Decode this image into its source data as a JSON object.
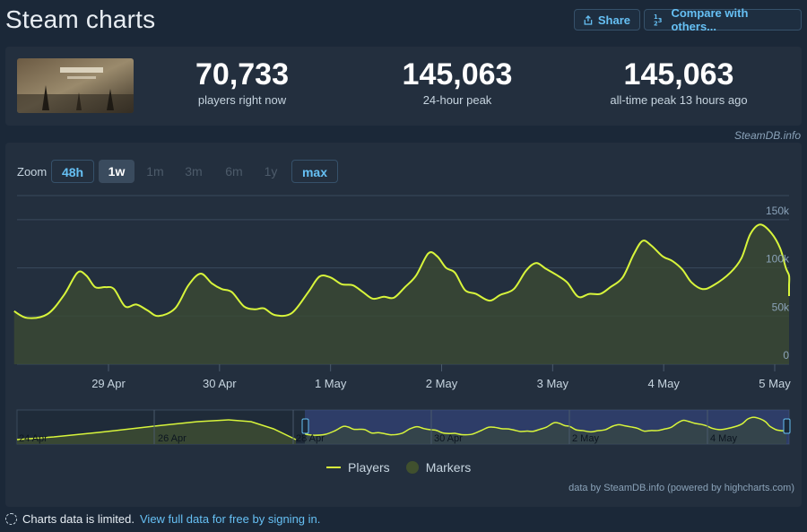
{
  "page": {
    "title": "Steam charts",
    "share_label": "Share",
    "compare_label": "Compare with others..."
  },
  "stats": [
    {
      "value": "70,733",
      "label": "players right now"
    },
    {
      "value": "145,063",
      "label": "24-hour peak"
    },
    {
      "value": "145,063",
      "label": "all-time peak 13 hours ago"
    }
  ],
  "credit_top": "SteamDB.info",
  "zoom": {
    "label": "Zoom",
    "options": [
      {
        "label": "48h",
        "state": "outline"
      },
      {
        "label": "1w",
        "state": "active"
      },
      {
        "label": "1m",
        "state": "disabled"
      },
      {
        "label": "3m",
        "state": "disabled"
      },
      {
        "label": "6m",
        "state": "disabled"
      },
      {
        "label": "1y",
        "state": "disabled"
      },
      {
        "label": "max",
        "state": "outline"
      }
    ]
  },
  "chart_data": {
    "type": "area",
    "title": "",
    "xlabel": "",
    "ylabel": "",
    "ylim": [
      0,
      175000
    ],
    "y_ticks": [
      {
        "value": 0,
        "label": "0"
      },
      {
        "value": 50000,
        "label": "50k"
      },
      {
        "value": 100000,
        "label": "100k"
      },
      {
        "value": 150000,
        "label": "150k"
      }
    ],
    "x_ticks": [
      "29 Apr",
      "30 Apr",
      "1 May",
      "2 May",
      "3 May",
      "4 May",
      "5 May"
    ],
    "x_unit": "days since first sample",
    "xlim": [
      0,
      6.98
    ],
    "grid": true,
    "color_line": "#d8f53b",
    "color_fill": "#3b4a33",
    "series": [
      {
        "name": "Players",
        "points": [
          [
            0.0,
            55000
          ],
          [
            0.12,
            48000
          ],
          [
            0.3,
            52000
          ],
          [
            0.45,
            72000
          ],
          [
            0.57,
            95000
          ],
          [
            0.65,
            92000
          ],
          [
            0.73,
            80000
          ],
          [
            0.82,
            80000
          ],
          [
            0.9,
            78000
          ],
          [
            1.0,
            60000
          ],
          [
            1.1,
            62000
          ],
          [
            1.2,
            56000
          ],
          [
            1.3,
            50000
          ],
          [
            1.45,
            58000
          ],
          [
            1.57,
            82000
          ],
          [
            1.68,
            94000
          ],
          [
            1.78,
            84000
          ],
          [
            1.87,
            78000
          ],
          [
            1.96,
            75000
          ],
          [
            2.07,
            60000
          ],
          [
            2.17,
            57000
          ],
          [
            2.25,
            58000
          ],
          [
            2.35,
            51000
          ],
          [
            2.5,
            53000
          ],
          [
            2.65,
            75000
          ],
          [
            2.75,
            91000
          ],
          [
            2.85,
            90000
          ],
          [
            2.95,
            83000
          ],
          [
            3.05,
            82000
          ],
          [
            3.14,
            75000
          ],
          [
            3.23,
            68000
          ],
          [
            3.33,
            70000
          ],
          [
            3.42,
            69000
          ],
          [
            3.52,
            80000
          ],
          [
            3.62,
            92000
          ],
          [
            3.73,
            115000
          ],
          [
            3.81,
            112000
          ],
          [
            3.89,
            100000
          ],
          [
            3.97,
            95000
          ],
          [
            4.06,
            77000
          ],
          [
            4.16,
            73000
          ],
          [
            4.28,
            66000
          ],
          [
            4.38,
            72000
          ],
          [
            4.5,
            78000
          ],
          [
            4.61,
            97000
          ],
          [
            4.7,
            105000
          ],
          [
            4.79,
            99000
          ],
          [
            4.88,
            93000
          ],
          [
            4.98,
            85000
          ],
          [
            5.08,
            70000
          ],
          [
            5.18,
            73000
          ],
          [
            5.28,
            73000
          ],
          [
            5.37,
            80000
          ],
          [
            5.48,
            90000
          ],
          [
            5.58,
            114000
          ],
          [
            5.66,
            128000
          ],
          [
            5.74,
            123000
          ],
          [
            5.84,
            112000
          ],
          [
            5.93,
            107000
          ],
          [
            6.02,
            98000
          ],
          [
            6.1,
            85000
          ],
          [
            6.2,
            78000
          ],
          [
            6.3,
            82000
          ],
          [
            6.45,
            95000
          ],
          [
            6.55,
            110000
          ],
          [
            6.63,
            135000
          ],
          [
            6.72,
            145000
          ],
          [
            6.82,
            136000
          ],
          [
            6.9,
            120000
          ],
          [
            6.95,
            100000
          ],
          [
            6.98,
            92000
          ],
          [
            7.03,
            82000
          ],
          [
            7.08,
            75000
          ],
          [
            7.15,
            72000
          ],
          [
            7.21,
            70733
          ]
        ]
      }
    ],
    "legend": [
      "Players",
      "Markers"
    ],
    "legend_position": "bottom-center"
  },
  "navigator": {
    "labels": [
      "24 Apr",
      "26 Apr",
      "28 Apr",
      "30 Apr",
      "2 May",
      "4 May"
    ]
  },
  "legend": {
    "players": "Players",
    "markers": "Markers"
  },
  "credit_bottom": "data by SteamDB.info (powered by highcharts.com)",
  "footer": {
    "text": "Charts data is limited.",
    "link": "View full data for free by signing in."
  }
}
